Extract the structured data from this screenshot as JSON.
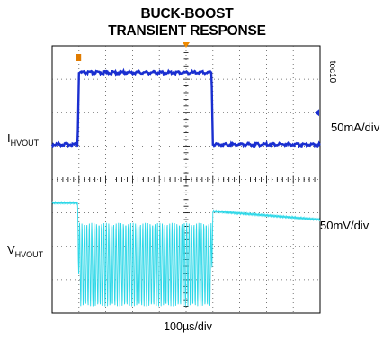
{
  "chart_data": {
    "type": "line",
    "title": [
      "BUCK-BOOST",
      "TRANSIENT RESPONSE"
    ],
    "figure_id": "toc10",
    "xlabel": "100µs/div",
    "grid": true,
    "divisions": {
      "x": 10,
      "y": 8
    },
    "channels": [
      {
        "label_main": "I",
        "label_sub": "HVOUT",
        "scale": "50mA/div",
        "color": "#1a2fd0",
        "x_div": [
          0.0,
          0.95,
          1.0,
          5.95,
          6.0,
          10.0
        ],
        "y_div": [
          -0.95,
          -0.95,
          1.2,
          1.2,
          -0.95,
          -0.95
        ]
      },
      {
        "label_main": "V",
        "label_sub": "HVOUT",
        "scale": "50mV/div",
        "color": "#2ed8e8",
        "x_div": [
          0.0,
          0.95,
          1.0,
          5.95,
          6.0,
          10.0
        ],
        "y_upper_div": [
          0.3,
          0.3,
          -0.3,
          -0.3,
          0.05,
          -0.2
        ],
        "y_lower_div": [
          0.3,
          0.3,
          -2.8,
          -2.8,
          0.05,
          -0.2
        ]
      }
    ],
    "markers": [
      {
        "name": "trigger",
        "color": "#f08a00"
      },
      {
        "name": "channel-1-reference",
        "color": "#e07b00"
      }
    ]
  }
}
